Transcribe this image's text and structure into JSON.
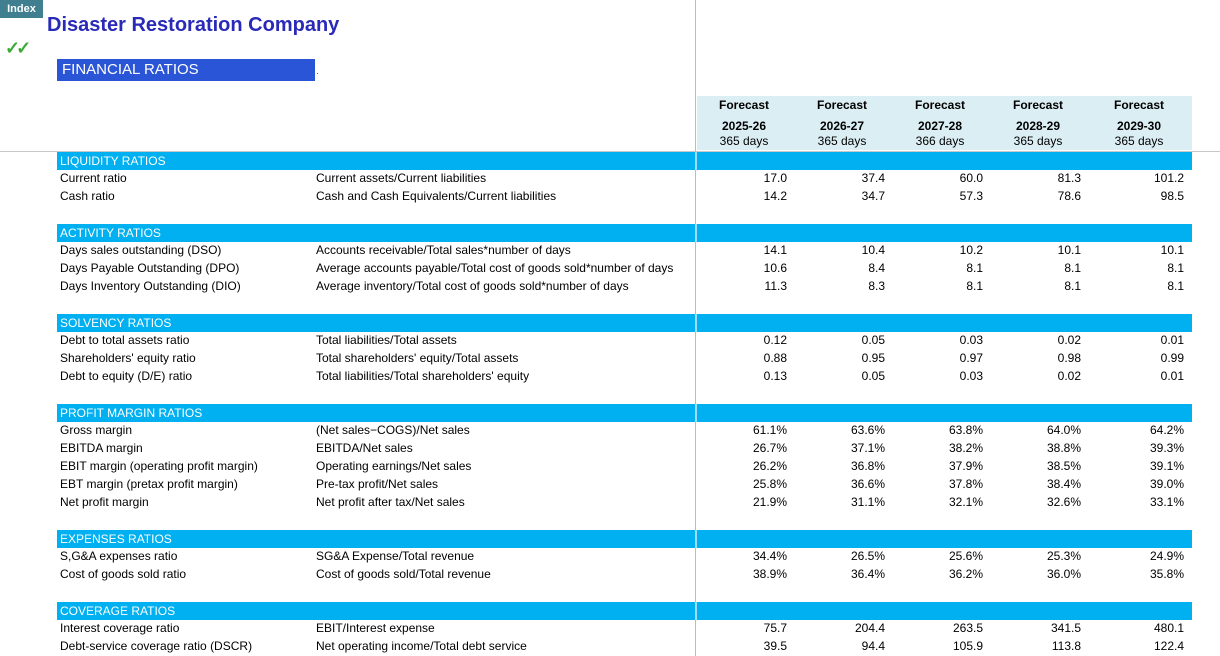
{
  "index_tab": "Index",
  "company": "Disaster Restoration Company",
  "check_icon": "double-check-icon",
  "section_title": "FINANCIAL RATIOS",
  "dot": ".",
  "columns": [
    {
      "forecast": "Forecast",
      "year": "2025-26",
      "days": "365 days"
    },
    {
      "forecast": "Forecast",
      "year": "2026-27",
      "days": "365 days"
    },
    {
      "forecast": "Forecast",
      "year": "2027-28",
      "days": "366 days"
    },
    {
      "forecast": "Forecast",
      "year": "2028-29",
      "days": "365 days"
    },
    {
      "forecast": "Forecast",
      "year": "2029-30",
      "days": "365 days"
    }
  ],
  "sections": [
    {
      "title": "LIQUIDITY RATIOS",
      "rows": [
        {
          "label": "Current ratio",
          "formula": "Current assets/Current liabilities",
          "values": [
            "17.0",
            "37.4",
            "60.0",
            "81.3",
            "101.2"
          ]
        },
        {
          "label": "Cash ratio",
          "formula": "Cash and Cash Equivalents/Current liabilities",
          "values": [
            "14.2",
            "34.7",
            "57.3",
            "78.6",
            "98.5"
          ]
        }
      ]
    },
    {
      "title": "ACTIVITY RATIOS",
      "rows": [
        {
          "label": "Days sales outstanding (DSO)",
          "formula": "Accounts receivable/Total sales*number of days",
          "values": [
            "14.1",
            "10.4",
            "10.2",
            "10.1",
            "10.1"
          ]
        },
        {
          "label": "Days Payable Outstanding (DPO)",
          "formula": "Average accounts payable/Total cost of goods sold*number of days",
          "values": [
            "10.6",
            "8.4",
            "8.1",
            "8.1",
            "8.1"
          ]
        },
        {
          "label": "Days Inventory Outstanding (DIO)",
          "formula": "Average inventory/Total cost of goods sold*number of days",
          "values": [
            "11.3",
            "8.3",
            "8.1",
            "8.1",
            "8.1"
          ]
        }
      ]
    },
    {
      "title": "SOLVENCY RATIOS",
      "rows": [
        {
          "label": "Debt to total assets ratio",
          "formula": "Total liabilities/Total assets",
          "values": [
            "0.12",
            "0.05",
            "0.03",
            "0.02",
            "0.01"
          ]
        },
        {
          "label": "Shareholders' equity ratio",
          "formula": "Total shareholders' equity/Total assets",
          "values": [
            "0.88",
            "0.95",
            "0.97",
            "0.98",
            "0.99"
          ]
        },
        {
          "label": "Debt to equity (D/E) ratio",
          "formula": "Total liabilities/Total shareholders' equity",
          "values": [
            "0.13",
            "0.05",
            "0.03",
            "0.02",
            "0.01"
          ]
        }
      ]
    },
    {
      "title": "PROFIT MARGIN RATIOS",
      "rows": [
        {
          "label": "Gross margin",
          "formula": "(Net sales−COGS)/Net sales",
          "values": [
            "61.1%",
            "63.6%",
            "63.8%",
            "64.0%",
            "64.2%"
          ]
        },
        {
          "label": "EBITDA margin",
          "formula": "EBITDA/Net sales",
          "values": [
            "26.7%",
            "37.1%",
            "38.2%",
            "38.8%",
            "39.3%"
          ]
        },
        {
          "label": "EBIT margin (operating profit margin)",
          "formula": "Operating earnings/Net sales",
          "values": [
            "26.2%",
            "36.8%",
            "37.9%",
            "38.5%",
            "39.1%"
          ]
        },
        {
          "label": "EBT margin (pretax profit margin)",
          "formula": "Pre-tax profit/Net sales",
          "values": [
            "25.8%",
            "36.6%",
            "37.8%",
            "38.4%",
            "39.0%"
          ]
        },
        {
          "label": "Net profit margin",
          "formula": "Net profit after tax/Net sales",
          "values": [
            "21.9%",
            "31.1%",
            "32.1%",
            "32.6%",
            "33.1%"
          ]
        }
      ]
    },
    {
      "title": "EXPENSES RATIOS",
      "rows": [
        {
          "label": "S,G&A expenses ratio",
          "formula": "SG&A Expense/Total revenue",
          "values": [
            "34.4%",
            "26.5%",
            "25.6%",
            "25.3%",
            "24.9%"
          ]
        },
        {
          "label": "Cost of goods sold ratio",
          "formula": "Cost of goods sold/Total revenue",
          "values": [
            "38.9%",
            "36.4%",
            "36.2%",
            "36.0%",
            "35.8%"
          ]
        }
      ]
    },
    {
      "title": "COVERAGE RATIOS",
      "rows": [
        {
          "label": "Interest coverage ratio",
          "formula": "EBIT/Interest expense",
          "values": [
            "75.7",
            "204.4",
            "263.5",
            "341.5",
            "480.1"
          ]
        },
        {
          "label": "Debt-service coverage ratio (DSCR)",
          "formula": "Net operating income/Total debt service",
          "values": [
            "39.5",
            "94.4",
            "105.9",
            "113.8",
            "122.4"
          ]
        }
      ]
    }
  ]
}
